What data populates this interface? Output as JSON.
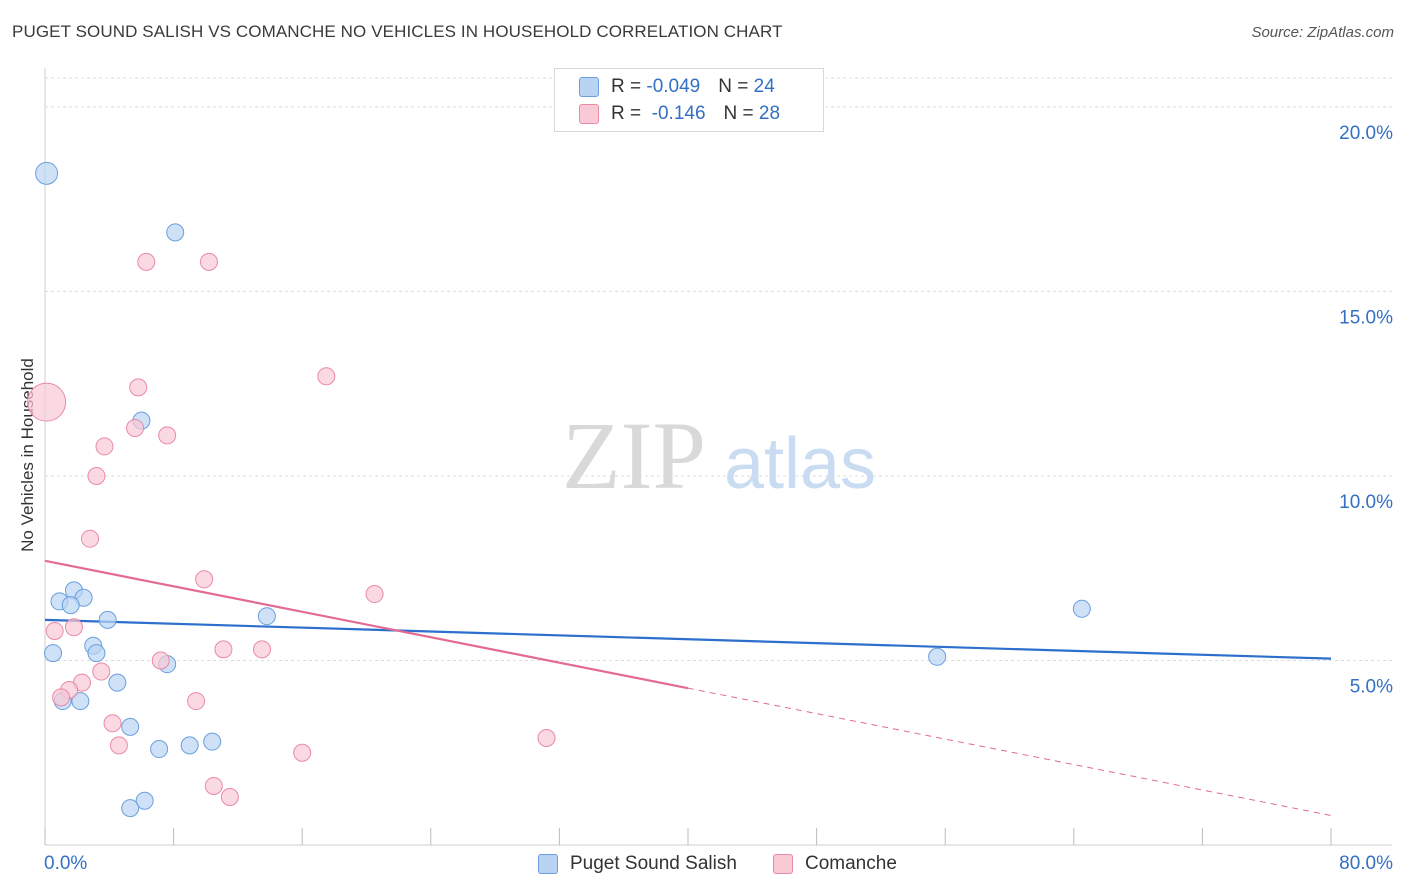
{
  "title": "PUGET SOUND SALISH VS COMANCHE NO VEHICLES IN HOUSEHOLD CORRELATION CHART",
  "source": "Source: ZipAtlas.com",
  "watermark": {
    "zip": "ZIP",
    "atlas": "atlas"
  },
  "legend": {
    "rows": [
      {
        "r_label": "R = ",
        "r_value": "-0.049",
        "n_label": "N = ",
        "n_value": "24"
      },
      {
        "r_label": "R = ",
        "r_value": " -0.146",
        "n_label": "N = ",
        "n_value": "28"
      }
    ]
  },
  "colors": {
    "blue_fill": "#b9d4f3",
    "blue_stroke": "#6a9fdd",
    "blue_line": "#2c6fcc",
    "pink_fill": "#f9c9d6",
    "pink_stroke": "#e98aa6",
    "pink_line": "#e26a93",
    "grid": "#dcdcdc",
    "axis_text": "#3370c4"
  },
  "chart_data": {
    "type": "scatter",
    "title": "PUGET SOUND SALISH VS COMANCHE NO VEHICLES IN HOUSEHOLD CORRELATION CHART",
    "xlabel": "",
    "ylabel": "No Vehicles in Household",
    "xlim": [
      0,
      80
    ],
    "ylim": [
      0,
      21
    ],
    "x_tick_labels": [
      "0.0%",
      "80.0%"
    ],
    "y_ticks": [
      5,
      10,
      15,
      20
    ],
    "y_tick_labels": [
      "5.0%",
      "10.0%",
      "15.0%",
      "20.0%"
    ],
    "series": [
      {
        "name": "Puget Sound Salish",
        "color": "blue",
        "r": -0.049,
        "n": 24,
        "points": [
          {
            "x": 0.1,
            "y": 18.2,
            "size": "large"
          },
          {
            "x": 8.1,
            "y": 16.6
          },
          {
            "x": 6.0,
            "y": 11.5
          },
          {
            "x": 1.8,
            "y": 6.9
          },
          {
            "x": 2.4,
            "y": 6.7
          },
          {
            "x": 0.9,
            "y": 6.6
          },
          {
            "x": 1.6,
            "y": 6.5
          },
          {
            "x": 3.9,
            "y": 6.1
          },
          {
            "x": 13.8,
            "y": 6.2
          },
          {
            "x": 3.0,
            "y": 5.4
          },
          {
            "x": 3.2,
            "y": 5.2
          },
          {
            "x": 0.5,
            "y": 5.2
          },
          {
            "x": 7.6,
            "y": 4.9
          },
          {
            "x": 4.5,
            "y": 4.4
          },
          {
            "x": 1.1,
            "y": 3.9
          },
          {
            "x": 2.2,
            "y": 3.9
          },
          {
            "x": 5.3,
            "y": 3.2
          },
          {
            "x": 10.4,
            "y": 2.8
          },
          {
            "x": 9.0,
            "y": 2.7
          },
          {
            "x": 7.1,
            "y": 2.6
          },
          {
            "x": 6.2,
            "y": 1.2
          },
          {
            "x": 5.3,
            "y": 1.0
          },
          {
            "x": 55.5,
            "y": 5.1
          },
          {
            "x": 64.5,
            "y": 6.4
          }
        ],
        "trend": {
          "x0": 0,
          "y0": 6.1,
          "x1": 80,
          "y1": 5.05,
          "solid_to": 80
        }
      },
      {
        "name": "Comanche",
        "color": "pink",
        "r": -0.146,
        "n": 28,
        "points": [
          {
            "x": 0.1,
            "y": 12.0,
            "size": "large"
          },
          {
            "x": 6.3,
            "y": 15.8
          },
          {
            "x": 10.2,
            "y": 15.8
          },
          {
            "x": 17.5,
            "y": 12.7
          },
          {
            "x": 5.8,
            "y": 12.4
          },
          {
            "x": 5.6,
            "y": 11.3
          },
          {
            "x": 7.6,
            "y": 11.1
          },
          {
            "x": 3.7,
            "y": 10.8
          },
          {
            "x": 3.2,
            "y": 10.0
          },
          {
            "x": 2.8,
            "y": 8.3
          },
          {
            "x": 9.9,
            "y": 7.2
          },
          {
            "x": 20.5,
            "y": 6.8
          },
          {
            "x": 1.8,
            "y": 5.9
          },
          {
            "x": 0.6,
            "y": 5.8
          },
          {
            "x": 11.1,
            "y": 5.3
          },
          {
            "x": 13.5,
            "y": 5.3
          },
          {
            "x": 7.2,
            "y": 5.0
          },
          {
            "x": 3.5,
            "y": 4.7
          },
          {
            "x": 2.3,
            "y": 4.4
          },
          {
            "x": 1.5,
            "y": 4.2
          },
          {
            "x": 1.0,
            "y": 4.0
          },
          {
            "x": 9.4,
            "y": 3.9
          },
          {
            "x": 4.2,
            "y": 3.3
          },
          {
            "x": 31.2,
            "y": 2.9
          },
          {
            "x": 4.6,
            "y": 2.7
          },
          {
            "x": 16.0,
            "y": 2.5
          },
          {
            "x": 10.5,
            "y": 1.6
          },
          {
            "x": 11.5,
            "y": 1.3
          }
        ],
        "trend": {
          "x0": 0,
          "y0": 7.7,
          "x1": 80,
          "y1": 0.8,
          "solid_to": 40
        }
      }
    ]
  },
  "bottom_legend": [
    "Puget Sound Salish",
    "Comanche"
  ]
}
